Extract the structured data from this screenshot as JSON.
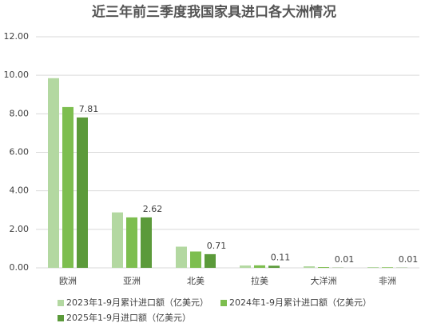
{
  "chart_data": {
    "type": "bar",
    "title": "近三年前三季度我国家具进口各大洲情况",
    "categories": [
      "欧洲",
      "亚洲",
      "北美",
      "拉美",
      "大洋洲",
      "非洲"
    ],
    "series": [
      {
        "name": "2023年1-9月累计进口额（亿美元）",
        "color": "#b3d8a1",
        "values": [
          9.85,
          2.88,
          1.1,
          0.12,
          0.08,
          0.04
        ]
      },
      {
        "name": "2024年1-9月累计进口额（亿美元）",
        "color": "#7dbe4f",
        "values": [
          8.35,
          2.62,
          0.85,
          0.13,
          0.04,
          0.03
        ]
      },
      {
        "name": "2025年1-9月进口额（亿美元）",
        "color": "#5b9a3a",
        "values": [
          7.81,
          2.62,
          0.71,
          0.11,
          0.01,
          0.01
        ],
        "data_labels": true
      }
    ],
    "ylim": [
      0,
      12
    ],
    "yticks": [
      {
        "value": 0,
        "label": "0.00"
      },
      {
        "value": 2,
        "label": "2.00"
      },
      {
        "value": 4,
        "label": "4.00"
      },
      {
        "value": 6,
        "label": "6.00"
      },
      {
        "value": 8,
        "label": "8.00"
      },
      {
        "value": 10,
        "label": "10.00"
      },
      {
        "value": 12,
        "label": "12.00"
      }
    ],
    "grid": true
  }
}
